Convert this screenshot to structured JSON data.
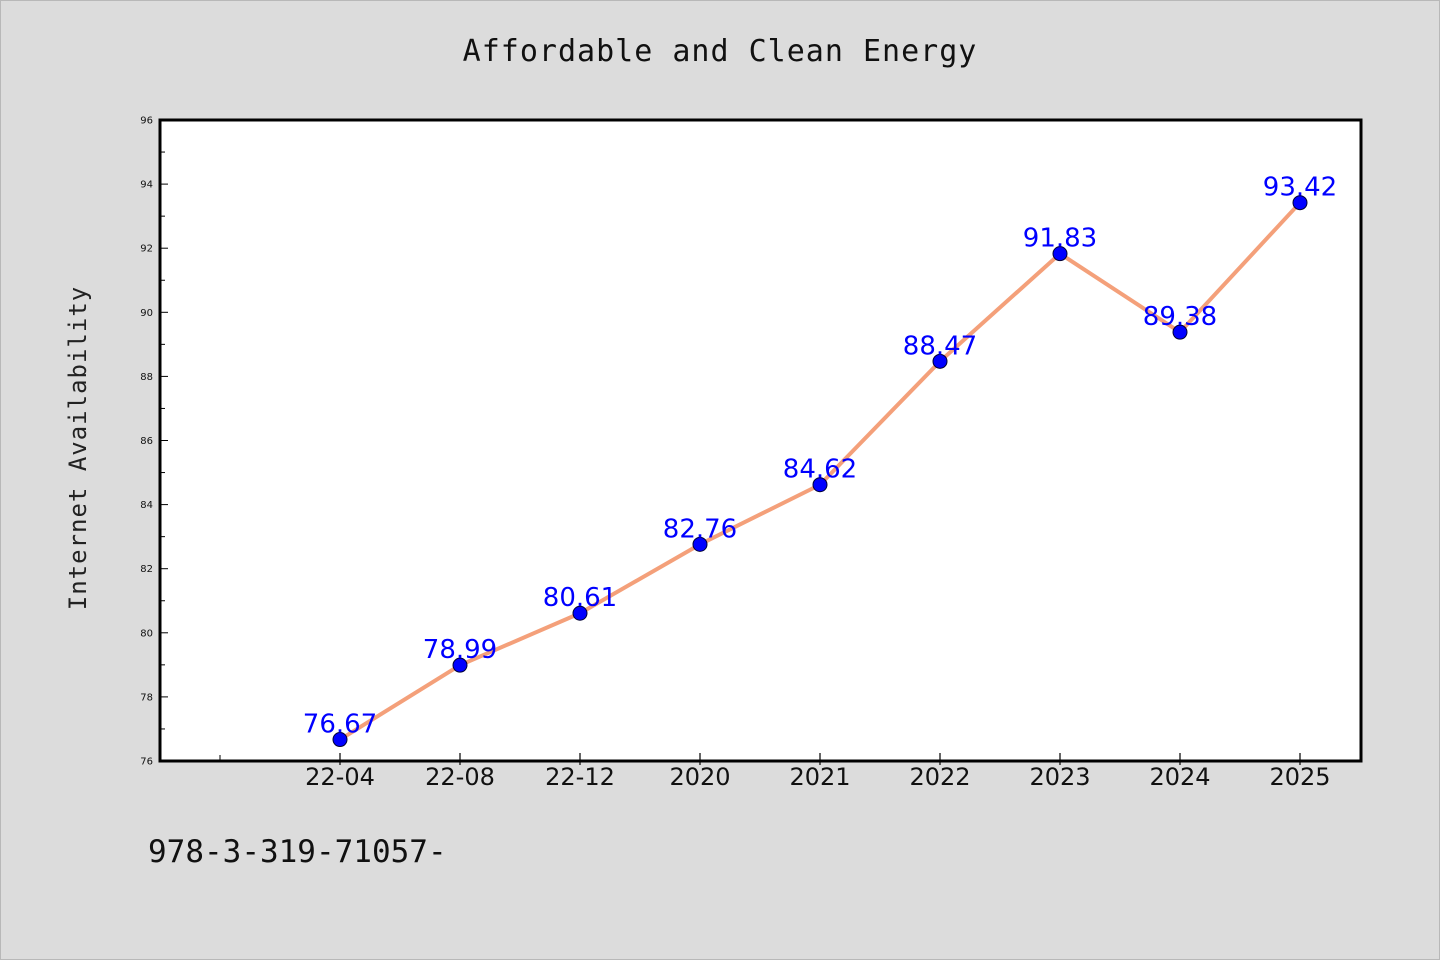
{
  "chart_data": {
    "type": "line",
    "title": "Affordable and Clean Energy",
    "xlabel": "",
    "ylabel": "Internet Availability",
    "categories": [
      "22-04",
      "22-08",
      "22-12",
      "2020",
      "2021",
      "2022",
      "2023",
      "2024",
      "2025"
    ],
    "values": [
      76.67,
      78.99,
      80.61,
      82.76,
      84.62,
      88.47,
      91.83,
      89.38,
      93.42
    ],
    "data_labels": [
      "76.67",
      "78.99",
      "80.61",
      "82.76",
      "84.62",
      "88.47",
      "91.83",
      "89.38",
      "93.42"
    ],
    "ylim": [
      76,
      96
    ],
    "yticks": [
      76,
      78,
      80,
      82,
      84,
      86,
      88,
      90,
      92,
      94,
      96
    ],
    "grid": false,
    "line_color": "#f4a07a",
    "marker_color": "#0000ff",
    "label_color": "#0000ff"
  },
  "footer": {
    "text": "978-3-319-71057-"
  }
}
